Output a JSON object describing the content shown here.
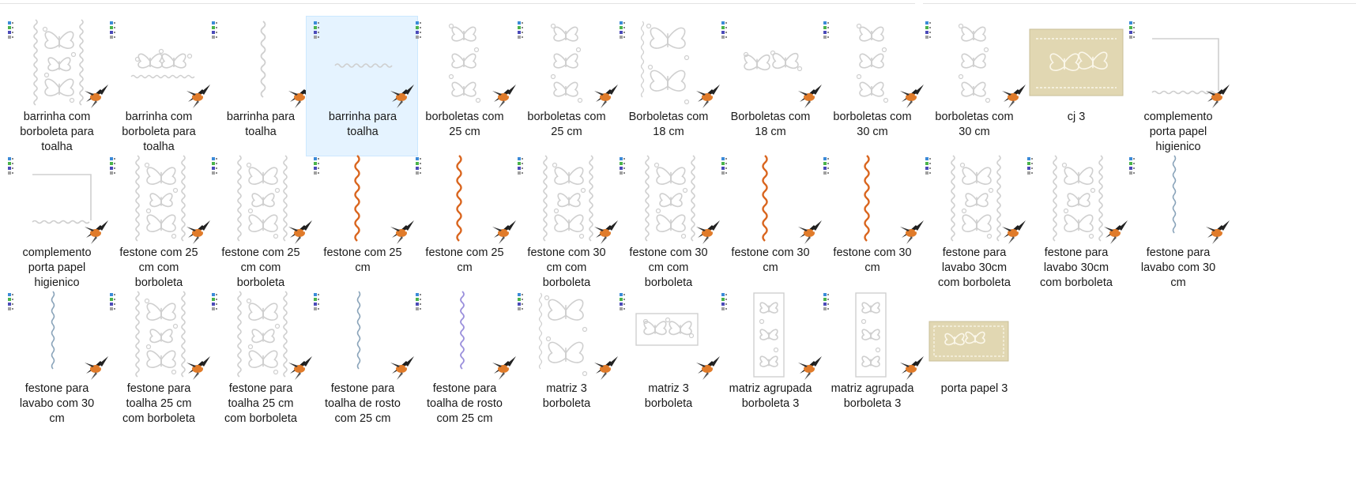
{
  "colors": {
    "selection_bg": "#e5f3ff",
    "selection_border": "#cce8ff",
    "thread_orange": "#d9651e",
    "thread_blue_gray": "#8aa4ba",
    "thread_lavender": "#9a8fdc",
    "thread_gray": "#c9c9c9",
    "fabric_beige": "#e1d7b2"
  },
  "files": [
    {
      "name": "barrinha com\nborboleta para\ntoalha",
      "icon": "embroidery-file-icon",
      "art": "butterfly-column-border"
    },
    {
      "name": "barrinha com\nborboleta para\ntoalha",
      "icon": "embroidery-file-icon",
      "art": "butterfly-strip"
    },
    {
      "name": "barrinha para\ntoalha",
      "icon": "embroidery-file-icon",
      "art": "gray-wave-vertical"
    },
    {
      "name": "barrinha para\ntoalha",
      "icon": "embroidery-file-icon",
      "art": "gray-wave-horizontal",
      "selected": true
    },
    {
      "name": "borboletas  com\n25 cm",
      "icon": "embroidery-file-icon",
      "art": "butterfly-column"
    },
    {
      "name": "borboletas  com\n25 cm",
      "icon": "embroidery-file-icon",
      "art": "butterfly-column"
    },
    {
      "name": "Borboletas com\n18 cm",
      "icon": "embroidery-file-icon",
      "art": "butterfly-column-large"
    },
    {
      "name": "Borboletas com\n18 cm",
      "icon": "embroidery-file-icon",
      "art": "butterfly-pair"
    },
    {
      "name": "borboletas com\n30 cm",
      "icon": "embroidery-file-icon",
      "art": "butterfly-column"
    },
    {
      "name": "borboletas com\n30 cm",
      "icon": "embroidery-file-icon",
      "art": "butterfly-column"
    },
    {
      "name": "cj 3",
      "icon": "photo-thumbnail",
      "art": "photo-towel"
    },
    {
      "name": "complemento\nporta papel\nhigienico",
      "icon": "embroidery-file-icon",
      "art": "bracket-right"
    },
    {
      "name": "complemento\nporta papel\nhigienico",
      "icon": "embroidery-file-icon",
      "art": "bracket-left"
    },
    {
      "name": "festone com 25\ncm  com\nborboleta",
      "icon": "embroidery-file-icon",
      "art": "butterfly-column-border"
    },
    {
      "name": "festone com 25\ncm  com\nborboleta",
      "icon": "embroidery-file-icon",
      "art": "butterfly-column-border"
    },
    {
      "name": "festone com 25\ncm",
      "icon": "embroidery-file-icon",
      "art": "orange-wave"
    },
    {
      "name": "festone com 25\ncm",
      "icon": "embroidery-file-icon",
      "art": "orange-wave"
    },
    {
      "name": "festone com 30\ncm  com\nborboleta",
      "icon": "embroidery-file-icon",
      "art": "butterfly-column-border"
    },
    {
      "name": "festone com 30\ncm  com\nborboleta",
      "icon": "embroidery-file-icon",
      "art": "butterfly-column-border"
    },
    {
      "name": "festone com 30\ncm",
      "icon": "embroidery-file-icon",
      "art": "orange-wave"
    },
    {
      "name": "festone com 30\ncm",
      "icon": "embroidery-file-icon",
      "art": "orange-wave"
    },
    {
      "name": "festone para\nlavabo 30cm\ncom borboleta",
      "icon": "embroidery-file-icon",
      "art": "butterfly-column-border"
    },
    {
      "name": "festone para\nlavabo 30cm\ncom borboleta",
      "icon": "embroidery-file-icon",
      "art": "butterfly-column-border"
    },
    {
      "name": "festone para\nlavabo com 30\ncm",
      "icon": "embroidery-file-icon",
      "art": "blue-wave"
    },
    {
      "name": "festone para\nlavabo com 30\ncm",
      "icon": "embroidery-file-icon",
      "art": "blue-wave"
    },
    {
      "name": "festone para\ntoalha 25 cm\ncom borboleta",
      "icon": "embroidery-file-icon",
      "art": "butterfly-column-border"
    },
    {
      "name": "festone para\ntoalha 25 cm\ncom borboleta",
      "icon": "embroidery-file-icon",
      "art": "butterfly-column-border"
    },
    {
      "name": "festone para\ntoalha de rosto\ncom 25 cm",
      "icon": "embroidery-file-icon",
      "art": "blue-wave"
    },
    {
      "name": "festone para\ntoalha de rosto\ncom 25 cm",
      "icon": "embroidery-file-icon",
      "art": "lavender-wave"
    },
    {
      "name": "matriz 3\nborboleta",
      "icon": "embroidery-file-icon",
      "art": "butterfly-column-large"
    },
    {
      "name": "matriz 3\nborboleta",
      "icon": "embroidery-file-icon",
      "art": "butterfly-strip-framed"
    },
    {
      "name": "matriz agrupada\nborboleta 3",
      "icon": "embroidery-file-icon",
      "art": "framed-butterfly-column"
    },
    {
      "name": "matriz agrupada\nborboleta 3",
      "icon": "embroidery-file-icon",
      "art": "framed-butterfly-column"
    },
    {
      "name": "porta papel 3",
      "icon": "photo-thumbnail",
      "art": "photo-holder"
    }
  ]
}
